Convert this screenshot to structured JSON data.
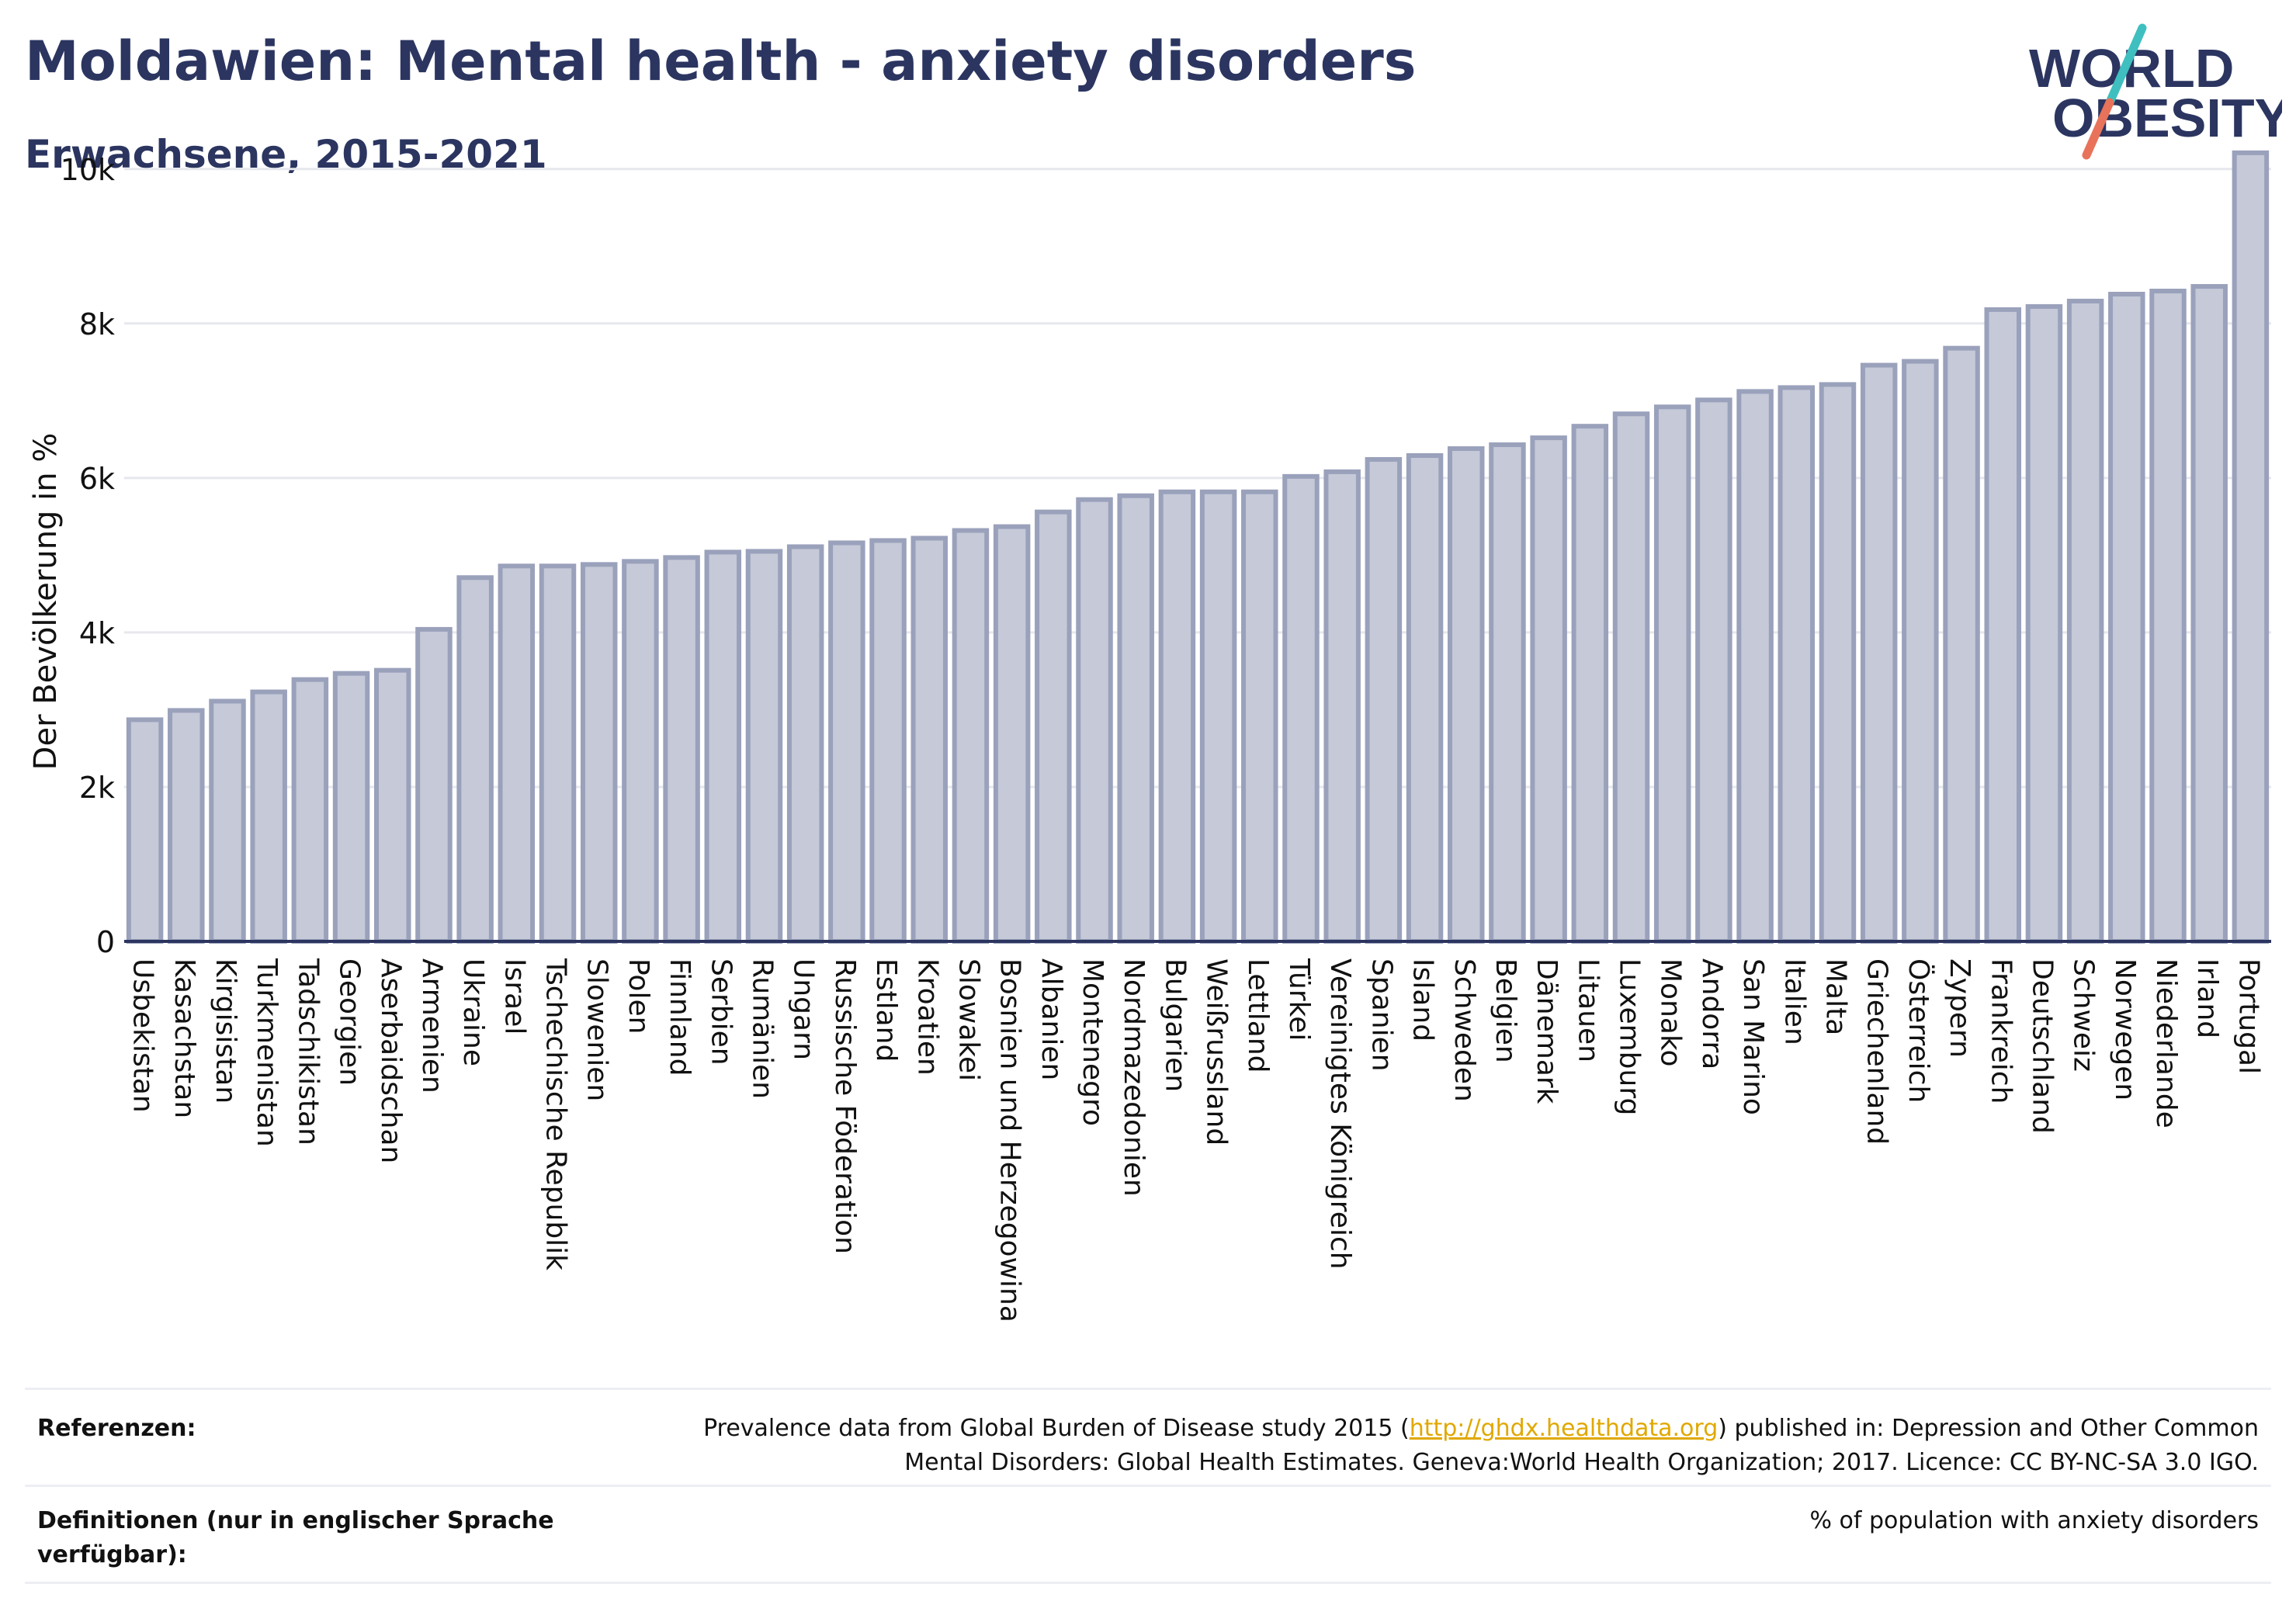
{
  "header": {
    "title": "Moldawien: Mental health - anxiety disorders",
    "subtitle": "Erwachsene, 2015-2021"
  },
  "logo": {
    "line1": "WORLD",
    "line2": "OBESITY",
    "colors": {
      "text": "#2b3560",
      "slash_top": "#3fbfbf",
      "slash_bottom": "#e8735a"
    }
  },
  "chart_data": {
    "type": "bar",
    "ylabel": "Der Bevölkerung in %",
    "ylim": [
      0,
      10500
    ],
    "yticks": [
      0,
      2000,
      4000,
      6000,
      8000,
      10000
    ],
    "ytick_labels": [
      "0",
      "2k",
      "4k",
      "6k",
      "8k",
      "10k"
    ],
    "grid": true,
    "bar_fill": "#c5c9d8",
    "bar_stroke": "#9aa1bb",
    "categories": [
      "Usbekistan",
      "Kasachstan",
      "Kirgisistan",
      "Turkmenistan",
      "Tadschikistan",
      "Georgien",
      "Aserbaidschan",
      "Armenien",
      "Ukraine",
      "Israel",
      "Tschechische Republik",
      "Slowenien",
      "Polen",
      "Finnland",
      "Serbien",
      "Rumänien",
      "Ungarn",
      "Russische Föderation",
      "Estland",
      "Kroatien",
      "Slowakei",
      "Bosnien und Herzegowina",
      "Albanien",
      "Montenegro",
      "Nordmazedonien",
      "Bulgarien",
      "Weißrussland",
      "Lettland",
      "Türkei",
      "Vereinigtes Königreich",
      "Spanien",
      "Island",
      "Schweden",
      "Belgien",
      "Dänemark",
      "Litauen",
      "Luxemburg",
      "Monako",
      "Andorra",
      "San Marino",
      "Italien",
      "Malta",
      "Griechenland",
      "Österreich",
      "Zypern",
      "Frankreich",
      "Deutschland",
      "Schweiz",
      "Norwegen",
      "Niederlande",
      "Irland",
      "Portugal"
    ],
    "values": [
      2870,
      2990,
      3110,
      3230,
      3390,
      3470,
      3510,
      4040,
      4710,
      4860,
      4860,
      4880,
      4920,
      4970,
      5040,
      5050,
      5110,
      5160,
      5190,
      5220,
      5320,
      5370,
      5560,
      5720,
      5770,
      5820,
      5820,
      5820,
      6020,
      6080,
      6240,
      6290,
      6380,
      6430,
      6520,
      6670,
      6830,
      6920,
      7010,
      7120,
      7170,
      7210,
      7460,
      7510,
      7680,
      8180,
      8220,
      8290,
      8380,
      8420,
      8480,
      10210
    ]
  },
  "references": {
    "label": "Referenzen:",
    "text_before": "Prevalence data from Global Burden of Disease study 2015 (",
    "link": "http://ghdx.healthdata.org",
    "text_after": ") published in: Depression and Other Common",
    "text_line2": "Mental Disorders: Global Health Estimates. Geneva:World Health Organization; 2017. Licence: CC BY-NC-SA 3.0 IGO."
  },
  "definitions": {
    "label_line1": "Definitionen (nur in englischer Sprache",
    "label_line2": "verfügbar):",
    "text": "% of population with anxiety disorders"
  }
}
